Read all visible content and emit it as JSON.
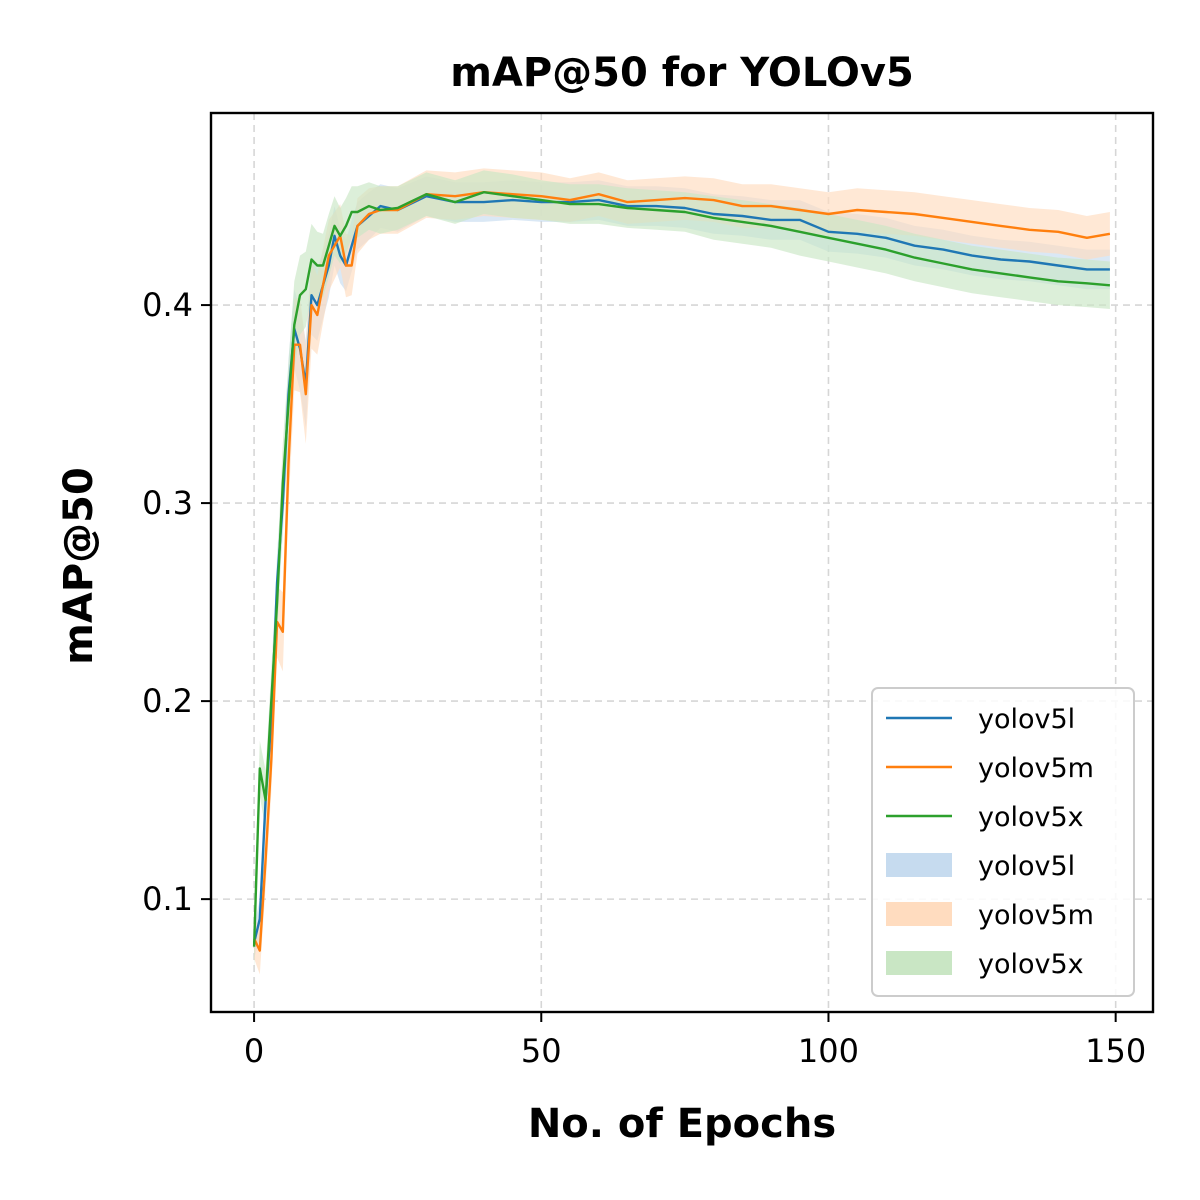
{
  "chart_data": {
    "type": "line",
    "title": "mAP@50 for YOLOv5",
    "xlabel": "No. of Epochs",
    "ylabel": "mAP@50",
    "xlim": [
      -7.5,
      156.5
    ],
    "ylim": [
      0.043,
      0.497
    ],
    "xticks": [
      0,
      50,
      100,
      150
    ],
    "xtick_labels": [
      "0",
      "50",
      "100",
      "150"
    ],
    "yticks": [
      0.1,
      0.2,
      0.3,
      0.4
    ],
    "ytick_labels": [
      "0.1",
      "0.2",
      "0.3",
      "0.4"
    ],
    "grid": true,
    "legend_position": "lower-right",
    "legend": {
      "lines": [
        "yolov5l",
        "yolov5m",
        "yolov5x"
      ],
      "bands": [
        "yolov5l",
        "yolov5m",
        "yolov5x"
      ]
    },
    "x_points": [
      0,
      1,
      2,
      3,
      4,
      5,
      6,
      7,
      8,
      9,
      10,
      11,
      12,
      13,
      14,
      15,
      16,
      17,
      18,
      20,
      22,
      25,
      30,
      35,
      40,
      45,
      50,
      55,
      60,
      65,
      70,
      75,
      80,
      85,
      90,
      95,
      100,
      105,
      110,
      115,
      120,
      125,
      130,
      135,
      140,
      145,
      149
    ],
    "series": [
      {
        "name": "yolov5l",
        "color": "#1f77b4",
        "band_color": "#c6dbef",
        "values": [
          0.078,
          0.09,
          0.15,
          0.19,
          0.26,
          0.3,
          0.355,
          0.388,
          0.378,
          0.36,
          0.405,
          0.4,
          0.41,
          0.42,
          0.435,
          0.425,
          0.42,
          0.43,
          0.44,
          0.445,
          0.45,
          0.448,
          0.455,
          0.452,
          0.452,
          0.453,
          0.452,
          0.452,
          0.453,
          0.45,
          0.45,
          0.449,
          0.446,
          0.445,
          0.443,
          0.443,
          0.437,
          0.436,
          0.434,
          0.43,
          0.428,
          0.425,
          0.423,
          0.422,
          0.42,
          0.418,
          0.418
        ],
        "band": [
          0.008,
          0.01,
          0.012,
          0.013,
          0.015,
          0.016,
          0.018,
          0.02,
          0.021,
          0.022,
          0.02,
          0.018,
          0.017,
          0.016,
          0.015,
          0.014,
          0.013,
          0.013,
          0.012,
          0.012,
          0.011,
          0.011,
          0.01,
          0.01,
          0.01,
          0.01,
          0.01,
          0.01,
          0.01,
          0.01,
          0.01,
          0.01,
          0.01,
          0.01,
          0.01,
          0.01,
          0.01,
          0.01,
          0.01,
          0.01,
          0.01,
          0.01,
          0.01,
          0.01,
          0.01,
          0.01,
          0.01
        ]
      },
      {
        "name": "yolov5m",
        "color": "#ff7f0e",
        "band_color": "#ffdcbf",
        "values": [
          0.08,
          0.074,
          0.12,
          0.17,
          0.24,
          0.235,
          0.32,
          0.38,
          0.38,
          0.355,
          0.4,
          0.395,
          0.41,
          0.425,
          0.43,
          0.435,
          0.42,
          0.42,
          0.44,
          0.446,
          0.448,
          0.448,
          0.456,
          0.455,
          0.457,
          0.456,
          0.455,
          0.453,
          0.456,
          0.452,
          0.453,
          0.454,
          0.453,
          0.45,
          0.45,
          0.448,
          0.446,
          0.448,
          0.447,
          0.446,
          0.444,
          0.442,
          0.44,
          0.438,
          0.437,
          0.434,
          0.436
        ],
        "band": [
          0.01,
          0.012,
          0.014,
          0.016,
          0.018,
          0.02,
          0.022,
          0.023,
          0.024,
          0.025,
          0.022,
          0.02,
          0.019,
          0.018,
          0.017,
          0.016,
          0.016,
          0.015,
          0.014,
          0.013,
          0.012,
          0.012,
          0.012,
          0.012,
          0.012,
          0.012,
          0.012,
          0.011,
          0.011,
          0.011,
          0.011,
          0.011,
          0.011,
          0.011,
          0.011,
          0.011,
          0.011,
          0.011,
          0.011,
          0.011,
          0.011,
          0.011,
          0.011,
          0.011,
          0.011,
          0.011,
          0.011
        ]
      },
      {
        "name": "yolov5x",
        "color": "#2ca02c",
        "band_color": "#c9e6c4",
        "values": [
          0.076,
          0.166,
          0.15,
          0.2,
          0.25,
          0.31,
          0.35,
          0.39,
          0.405,
          0.408,
          0.423,
          0.42,
          0.42,
          0.43,
          0.44,
          0.435,
          0.44,
          0.447,
          0.447,
          0.45,
          0.448,
          0.449,
          0.456,
          0.452,
          0.457,
          0.455,
          0.453,
          0.451,
          0.451,
          0.449,
          0.448,
          0.447,
          0.444,
          0.442,
          0.44,
          0.437,
          0.434,
          0.431,
          0.428,
          0.424,
          0.421,
          0.418,
          0.416,
          0.414,
          0.412,
          0.411,
          0.41
        ],
        "band": [
          0.012,
          0.014,
          0.015,
          0.016,
          0.018,
          0.02,
          0.021,
          0.022,
          0.02,
          0.019,
          0.018,
          0.017,
          0.016,
          0.016,
          0.015,
          0.014,
          0.014,
          0.013,
          0.013,
          0.012,
          0.012,
          0.011,
          0.011,
          0.011,
          0.011,
          0.011,
          0.01,
          0.01,
          0.01,
          0.01,
          0.01,
          0.01,
          0.011,
          0.011,
          0.011,
          0.012,
          0.012,
          0.012,
          0.012,
          0.012,
          0.012,
          0.012,
          0.012,
          0.012,
          0.012,
          0.012,
          0.012
        ]
      }
    ]
  }
}
